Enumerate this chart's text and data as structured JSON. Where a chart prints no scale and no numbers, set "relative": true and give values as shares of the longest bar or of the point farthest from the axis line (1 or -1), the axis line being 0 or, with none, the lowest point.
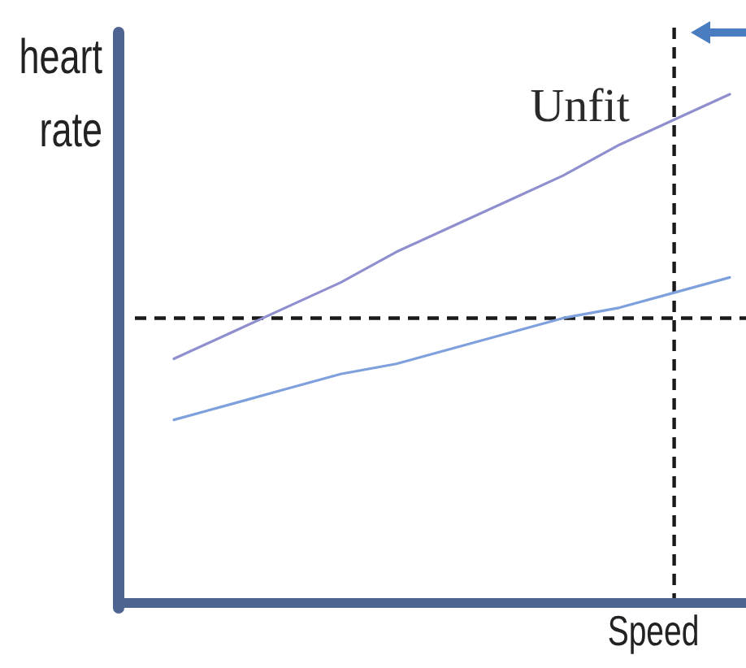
{
  "chart_data": {
    "type": "line",
    "relative": true,
    "xlabel": "Speed",
    "ylabel": "heart rate",
    "line_style": "solid",
    "categories": [
      null,
      null,
      null,
      null,
      null,
      null,
      null,
      null,
      null,
      null,
      null
    ],
    "series": [
      {
        "name": "Unfit",
        "color": "#8f8fcf",
        "values": [
          0.48,
          0.53,
          0.58,
          0.63,
          0.69,
          0.74,
          0.79,
          0.84,
          0.9,
          0.95,
          1
        ]
      },
      {
        "color": "#7ea0dc",
        "values": [
          0.36,
          0.39,
          0.42,
          0.45,
          0.47,
          0.5,
          0.53,
          0.56,
          0.58,
          0.61,
          0.64
        ]
      }
    ],
    "ref_lines": [
      {
        "axis": "y",
        "value": 0.56,
        "line_style": "dashed",
        "color": "#1a1a1a"
      }
    ]
  }
}
